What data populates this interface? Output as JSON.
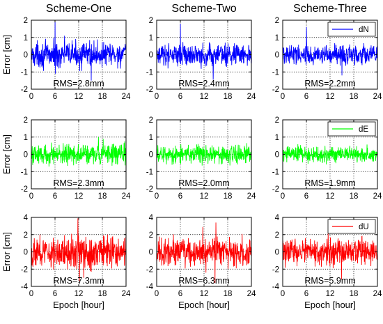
{
  "chart_data": {
    "type": "line",
    "column_titles": [
      "Scheme-One",
      "Scheme-Two",
      "Scheme-Three"
    ],
    "xlabel": "Epoch [hour]",
    "ylabel": "Error [cm]",
    "xlim": [
      0,
      24
    ],
    "xticks": [
      0,
      6,
      12,
      18,
      24
    ],
    "grid": "dotted",
    "rows": [
      {
        "component": "dN",
        "color": "#0000ff",
        "ylim": [
          -2,
          2
        ],
        "yticks": [
          -2,
          -1,
          0,
          1,
          2
        ],
        "legend": "dN",
        "rms": [
          "RMS=2.8mm",
          "RMS=2.4mm",
          "RMS=2.2mm"
        ],
        "noise_amplitude": [
          0.22,
          0.19,
          0.17
        ],
        "spikes": [
          [
            [
              6.0,
              1.9
            ],
            [
              6.1,
              -1.1
            ],
            [
              8.4,
              1.1
            ],
            [
              14.8,
              0.85
            ],
            [
              15.2,
              -1.5
            ],
            [
              3.0,
              -0.75
            ],
            [
              10.5,
              0.6
            ],
            [
              20.0,
              0.55
            ]
          ],
          [
            [
              6.0,
              1.8
            ],
            [
              6.1,
              -0.55
            ],
            [
              13.5,
              0.65
            ],
            [
              14.3,
              -1.45
            ],
            [
              9.0,
              0.5
            ],
            [
              19.5,
              0.5
            ],
            [
              22.0,
              -0.5
            ]
          ],
          [
            [
              6.0,
              1.6
            ],
            [
              6.1,
              0.8
            ],
            [
              15.0,
              -1.2
            ],
            [
              11.0,
              0.5
            ],
            [
              18.5,
              0.45
            ],
            [
              3.5,
              -0.5
            ]
          ]
        ]
      },
      {
        "component": "dE",
        "color": "#00ff00",
        "ylim": [
          -2,
          2
        ],
        "yticks": [
          -2,
          -1,
          0,
          1,
          2
        ],
        "legend": "dE",
        "rms": [
          "RMS=2.3mm",
          "RMS=2.0mm",
          "RMS=1.9mm"
        ],
        "noise_amplitude": [
          0.18,
          0.16,
          0.15
        ],
        "spikes": [
          [
            [
              17.0,
              1.0
            ],
            [
              17.4,
              -0.6
            ],
            [
              18.2,
              0.9
            ],
            [
              9.5,
              0.6
            ],
            [
              22.5,
              0.55
            ]
          ],
          [
            [
              8.0,
              0.55
            ],
            [
              13.0,
              -0.55
            ],
            [
              19.0,
              0.5
            ]
          ],
          [
            [
              17.0,
              0.5
            ],
            [
              10.0,
              -0.5
            ],
            [
              4.0,
              0.45
            ]
          ]
        ]
      },
      {
        "component": "dU",
        "color": "#ff0000",
        "ylim": [
          -4,
          4
        ],
        "yticks": [
          -4,
          -2,
          0,
          2,
          4
        ],
        "legend": "dU",
        "rms": [
          "RMS=7.3mm",
          "RMS=6.3mm",
          "RMS=5.9mm"
        ],
        "noise_amplitude": [
          0.55,
          0.48,
          0.45
        ],
        "spikes": [
          [
            [
              11.8,
              3.9
            ],
            [
              12.2,
              -3.4
            ],
            [
              13.3,
              -3.0
            ],
            [
              15.2,
              -2.3
            ],
            [
              10.2,
              2.1
            ],
            [
              5.0,
              -1.8
            ],
            [
              20.5,
              1.7
            ]
          ],
          [
            [
              11.7,
              2.9
            ],
            [
              12.5,
              -2.4
            ],
            [
              14.8,
              -3.6
            ],
            [
              15.0,
              3.4
            ],
            [
              8.0,
              1.6
            ],
            [
              19.5,
              -1.7
            ]
          ],
          [
            [
              11.5,
              2.2
            ],
            [
              14.9,
              -3.2
            ],
            [
              12.8,
              -1.9
            ],
            [
              7.0,
              1.5
            ],
            [
              20.0,
              -1.5
            ]
          ]
        ]
      }
    ]
  }
}
